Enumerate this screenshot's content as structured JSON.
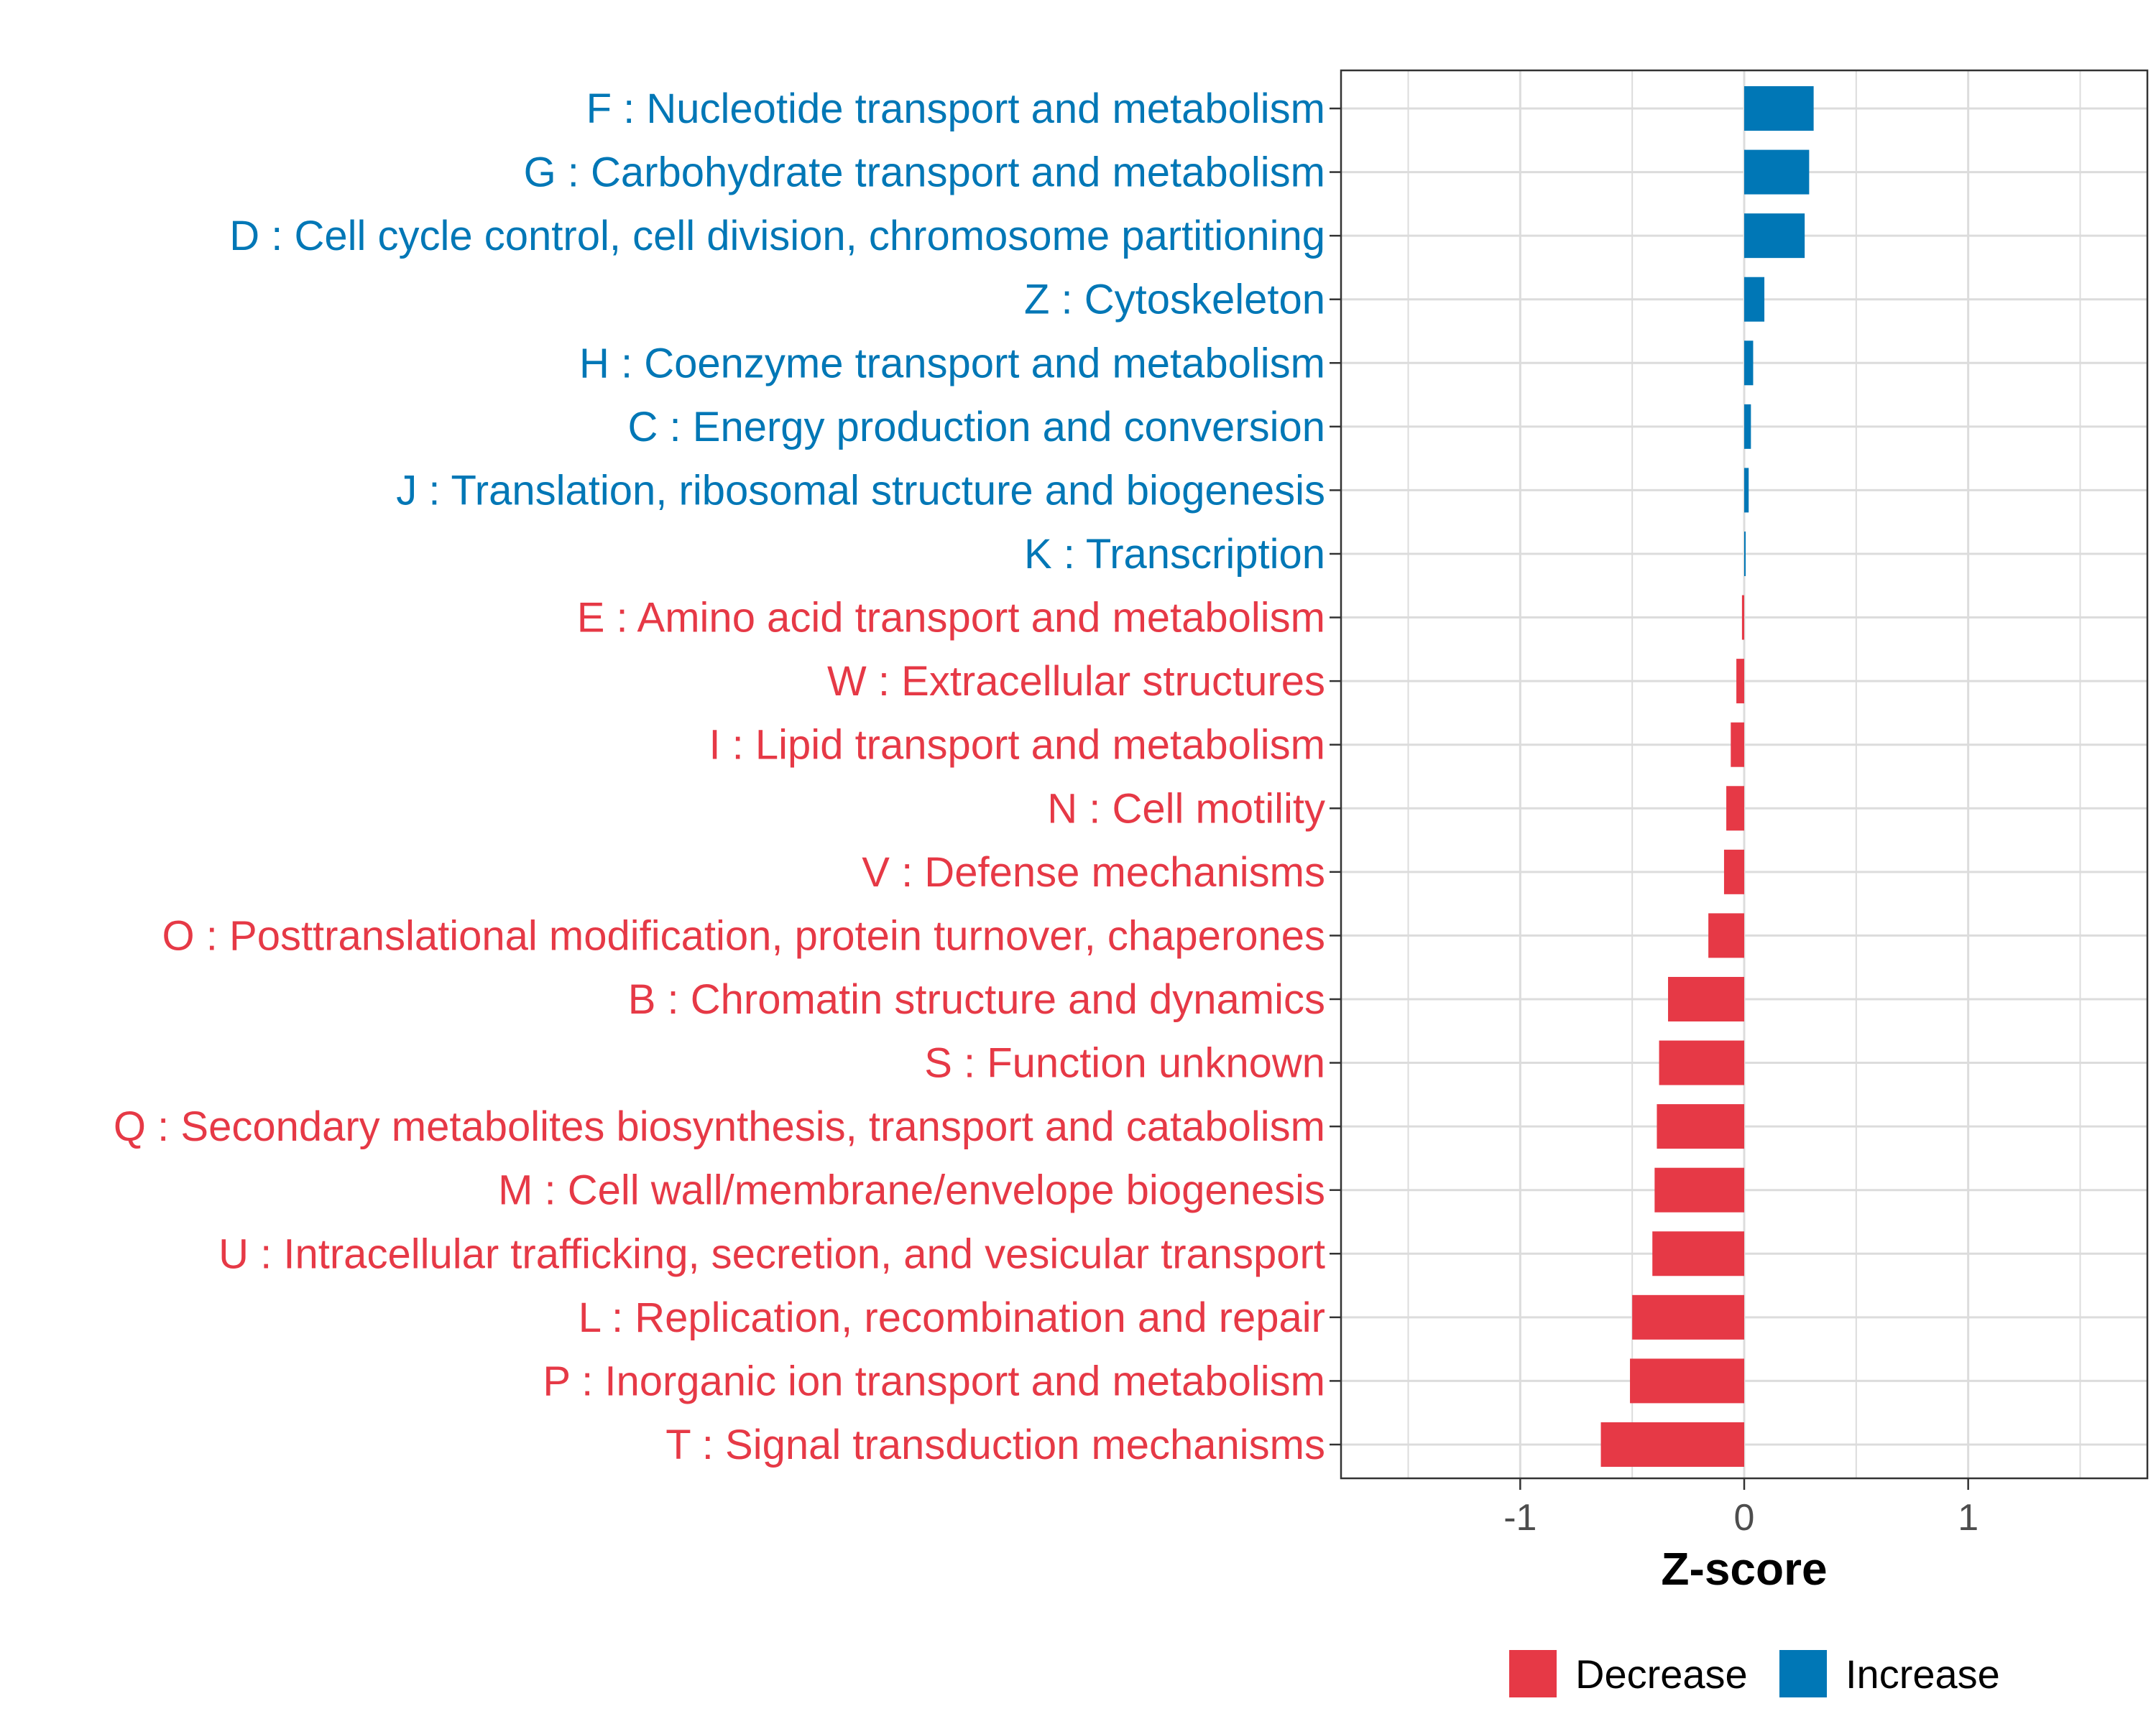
{
  "chart_data": {
    "type": "bar",
    "orientation": "horizontal",
    "categories": [
      "F : Nucleotide transport and metabolism",
      "G : Carbohydrate transport and metabolism",
      "D : Cell cycle control, cell division, chromosome partitioning",
      "Z : Cytoskeleton",
      "H : Coenzyme transport and metabolism",
      "C : Energy production and conversion",
      "J : Translation, ribosomal structure and biogenesis",
      "K : Transcription",
      "E : Amino acid transport and metabolism",
      "W : Extracellular structures",
      "I : Lipid transport and metabolism",
      "N : Cell motility",
      "V : Defense mechanisms",
      "O : Posttranslational modification, protein turnover, chaperones",
      "B : Chromatin structure and dynamics",
      "S : Function unknown",
      "Q : Secondary metabolites biosynthesis, transport and catabolism",
      "M : Cell wall/membrane/envelope biogenesis",
      "U : Intracellular trafficking, secretion, and vesicular transport",
      "L : Replication, recombination and repair",
      "P : Inorganic ion transport and metabolism",
      "T : Signal transduction mechanisms"
    ],
    "values": [
      0.31,
      0.29,
      0.27,
      0.09,
      0.04,
      0.03,
      0.02,
      0.005,
      -0.01,
      -0.035,
      -0.06,
      -0.08,
      -0.09,
      -0.16,
      -0.34,
      -0.38,
      -0.39,
      -0.4,
      -0.41,
      -0.5,
      -0.51,
      -0.64
    ],
    "groups": [
      "Increase",
      "Increase",
      "Increase",
      "Increase",
      "Increase",
      "Increase",
      "Increase",
      "Increase",
      "Decrease",
      "Decrease",
      "Decrease",
      "Decrease",
      "Decrease",
      "Decrease",
      "Decrease",
      "Decrease",
      "Decrease",
      "Decrease",
      "Decrease",
      "Decrease",
      "Decrease",
      "Decrease"
    ],
    "xlabel": "Z-score",
    "ylabel": "",
    "xlim": [
      -1.8,
      1.8
    ],
    "xticks": [
      -1,
      0,
      1
    ],
    "xtick_labels": [
      "-1",
      "0",
      "1"
    ],
    "grid": true,
    "legend": {
      "position": "bottom",
      "entries": [
        {
          "label": "Decrease",
          "color": "#E63946"
        },
        {
          "label": "Increase",
          "color": "#0077B6"
        }
      ]
    },
    "colors": {
      "Decrease": "#E63946",
      "Increase": "#0077B6"
    }
  }
}
